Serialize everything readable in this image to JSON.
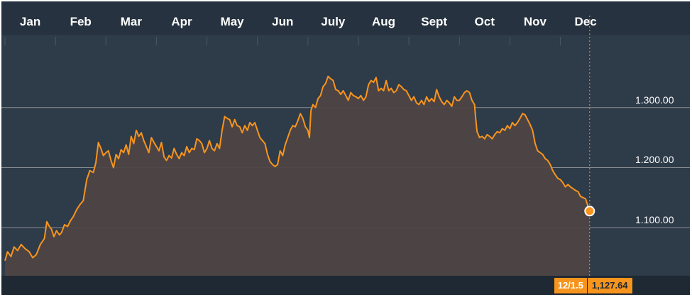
{
  "chart_data": {
    "type": "area",
    "x_months": [
      "Jan",
      "Feb",
      "Mar",
      "Apr",
      "May",
      "Jun",
      "July",
      "Aug",
      "Sept",
      "Oct",
      "Nov",
      "Dec"
    ],
    "y_ticks": [
      "1.100.00",
      "1.200.00",
      "1.300.00"
    ],
    "y_tick_values": [
      1100,
      1200,
      1300
    ],
    "ylim": [
      1020,
      1400
    ],
    "xlim": [
      0,
      12.3
    ],
    "grid": true,
    "colors": {
      "line": "#f7941d",
      "area": "#4e4445",
      "background": "#2e3b49",
      "grid": "#8a8f94"
    },
    "series": [
      {
        "values": [
          [
            0.0,
            1045
          ],
          [
            0.05,
            1060
          ],
          [
            0.12,
            1052
          ],
          [
            0.18,
            1068
          ],
          [
            0.25,
            1062
          ],
          [
            0.32,
            1072
          ],
          [
            0.4,
            1065
          ],
          [
            0.48,
            1060
          ],
          [
            0.55,
            1050
          ],
          [
            0.62,
            1055
          ],
          [
            0.7,
            1072
          ],
          [
            0.78,
            1082
          ],
          [
            0.83,
            1110
          ],
          [
            0.88,
            1102
          ],
          [
            0.92,
            1098
          ],
          [
            0.97,
            1085
          ],
          [
            1.02,
            1095
          ],
          [
            1.08,
            1088
          ],
          [
            1.12,
            1092
          ],
          [
            1.18,
            1105
          ],
          [
            1.24,
            1102
          ],
          [
            1.3,
            1112
          ],
          [
            1.35,
            1118
          ],
          [
            1.42,
            1130
          ],
          [
            1.48,
            1138
          ],
          [
            1.55,
            1145
          ],
          [
            1.62,
            1180
          ],
          [
            1.68,
            1195
          ],
          [
            1.75,
            1192
          ],
          [
            1.8,
            1208
          ],
          [
            1.85,
            1242
          ],
          [
            1.9,
            1232
          ],
          [
            1.95,
            1220
          ],
          [
            2.0,
            1225
          ],
          [
            2.05,
            1228
          ],
          [
            2.1,
            1212
          ],
          [
            2.15,
            1200
          ],
          [
            2.2,
            1222
          ],
          [
            2.25,
            1215
          ],
          [
            2.3,
            1230
          ],
          [
            2.35,
            1225
          ],
          [
            2.4,
            1238
          ],
          [
            2.45,
            1222
          ],
          [
            2.5,
            1252
          ],
          [
            2.55,
            1240
          ],
          [
            2.6,
            1262
          ],
          [
            2.65,
            1252
          ],
          [
            2.7,
            1258
          ],
          [
            2.75,
            1245
          ],
          [
            2.8,
            1235
          ],
          [
            2.85,
            1225
          ],
          [
            2.9,
            1250
          ],
          [
            2.95,
            1242
          ],
          [
            3.0,
            1235
          ],
          [
            3.05,
            1228
          ],
          [
            3.1,
            1242
          ],
          [
            3.15,
            1218
          ],
          [
            3.2,
            1212
          ],
          [
            3.25,
            1220
          ],
          [
            3.3,
            1216
          ],
          [
            3.35,
            1232
          ],
          [
            3.4,
            1222
          ],
          [
            3.45,
            1215
          ],
          [
            3.5,
            1225
          ],
          [
            3.55,
            1220
          ],
          [
            3.6,
            1235
          ],
          [
            3.65,
            1225
          ],
          [
            3.7,
            1232
          ],
          [
            3.75,
            1230
          ],
          [
            3.8,
            1248
          ],
          [
            3.85,
            1245
          ],
          [
            3.9,
            1240
          ],
          [
            3.95,
            1225
          ],
          [
            4.0,
            1232
          ],
          [
            4.05,
            1245
          ],
          [
            4.1,
            1232
          ],
          [
            4.15,
            1228
          ],
          [
            4.2,
            1240
          ],
          [
            4.25,
            1232
          ],
          [
            4.3,
            1262
          ],
          [
            4.35,
            1285
          ],
          [
            4.4,
            1282
          ],
          [
            4.45,
            1280
          ],
          [
            4.5,
            1268
          ],
          [
            4.55,
            1280
          ],
          [
            4.6,
            1270
          ],
          [
            4.65,
            1268
          ],
          [
            4.7,
            1258
          ],
          [
            4.75,
            1270
          ],
          [
            4.8,
            1262
          ],
          [
            4.85,
            1275
          ],
          [
            4.9,
            1270
          ],
          [
            4.95,
            1275
          ],
          [
            5.0,
            1262
          ],
          [
            5.05,
            1250
          ],
          [
            5.1,
            1245
          ],
          [
            5.15,
            1240
          ],
          [
            5.2,
            1222
          ],
          [
            5.25,
            1210
          ],
          [
            5.3,
            1205
          ],
          [
            5.35,
            1202
          ],
          [
            5.4,
            1205
          ],
          [
            5.45,
            1228
          ],
          [
            5.5,
            1220
          ],
          [
            5.55,
            1238
          ],
          [
            5.6,
            1250
          ],
          [
            5.65,
            1262
          ],
          [
            5.7,
            1270
          ],
          [
            5.75,
            1268
          ],
          [
            5.8,
            1278
          ],
          [
            5.85,
            1290
          ],
          [
            5.9,
            1282
          ],
          [
            5.95,
            1268
          ],
          [
            6.0,
            1262
          ],
          [
            6.03,
            1250
          ],
          [
            6.06,
            1295
          ],
          [
            6.1,
            1305
          ],
          [
            6.15,
            1300
          ],
          [
            6.2,
            1315
          ],
          [
            6.25,
            1320
          ],
          [
            6.3,
            1335
          ],
          [
            6.35,
            1340
          ],
          [
            6.4,
            1352
          ],
          [
            6.45,
            1348
          ],
          [
            6.5,
            1345
          ],
          [
            6.55,
            1330
          ],
          [
            6.6,
            1328
          ],
          [
            6.65,
            1322
          ],
          [
            6.7,
            1328
          ],
          [
            6.75,
            1320
          ],
          [
            6.8,
            1312
          ],
          [
            6.85,
            1325
          ],
          [
            6.9,
            1320
          ],
          [
            6.95,
            1318
          ],
          [
            7.0,
            1315
          ],
          [
            7.05,
            1320
          ],
          [
            7.1,
            1312
          ],
          [
            7.15,
            1318
          ],
          [
            7.2,
            1338
          ],
          [
            7.25,
            1345
          ],
          [
            7.3,
            1342
          ],
          [
            7.35,
            1350
          ],
          [
            7.4,
            1328
          ],
          [
            7.45,
            1332
          ],
          [
            7.5,
            1328
          ],
          [
            7.55,
            1345
          ],
          [
            7.6,
            1328
          ],
          [
            7.65,
            1332
          ],
          [
            7.7,
            1325
          ],
          [
            7.75,
            1328
          ],
          [
            7.8,
            1338
          ],
          [
            7.85,
            1335
          ],
          [
            7.9,
            1330
          ],
          [
            7.95,
            1328
          ],
          [
            8.0,
            1320
          ],
          [
            8.05,
            1312
          ],
          [
            8.1,
            1318
          ],
          [
            8.15,
            1308
          ],
          [
            8.2,
            1305
          ],
          [
            8.25,
            1312
          ],
          [
            8.3,
            1305
          ],
          [
            8.35,
            1318
          ],
          [
            8.4,
            1310
          ],
          [
            8.45,
            1315
          ],
          [
            8.5,
            1310
          ],
          [
            8.55,
            1330
          ],
          [
            8.6,
            1318
          ],
          [
            8.65,
            1310
          ],
          [
            8.7,
            1305
          ],
          [
            8.75,
            1312
          ],
          [
            8.8,
            1308
          ],
          [
            8.85,
            1302
          ],
          [
            8.9,
            1318
          ],
          [
            8.95,
            1312
          ],
          [
            9.0,
            1312
          ],
          [
            9.05,
            1318
          ],
          [
            9.1,
            1325
          ],
          [
            9.15,
            1328
          ],
          [
            9.2,
            1325
          ],
          [
            9.25,
            1312
          ],
          [
            9.3,
            1305
          ],
          [
            9.32,
            1285
          ],
          [
            9.35,
            1260
          ],
          [
            9.4,
            1250
          ],
          [
            9.45,
            1252
          ],
          [
            9.5,
            1248
          ],
          [
            9.55,
            1255
          ],
          [
            9.6,
            1252
          ],
          [
            9.65,
            1248
          ],
          [
            9.7,
            1255
          ],
          [
            9.75,
            1260
          ],
          [
            9.8,
            1258
          ],
          [
            9.85,
            1265
          ],
          [
            9.9,
            1262
          ],
          [
            9.95,
            1270
          ],
          [
            10.0,
            1265
          ],
          [
            10.05,
            1275
          ],
          [
            10.1,
            1270
          ],
          [
            10.15,
            1275
          ],
          [
            10.2,
            1282
          ],
          [
            10.25,
            1290
          ],
          [
            10.3,
            1288
          ],
          [
            10.35,
            1280
          ],
          [
            10.4,
            1272
          ],
          [
            10.45,
            1262
          ],
          [
            10.5,
            1240
          ],
          [
            10.55,
            1228
          ],
          [
            10.6,
            1225
          ],
          [
            10.65,
            1222
          ],
          [
            10.7,
            1215
          ],
          [
            10.75,
            1212
          ],
          [
            10.8,
            1205
          ],
          [
            10.85,
            1195
          ],
          [
            10.9,
            1188
          ],
          [
            10.95,
            1182
          ],
          [
            11.0,
            1180
          ],
          [
            11.05,
            1175
          ],
          [
            11.1,
            1168
          ],
          [
            11.15,
            1172
          ],
          [
            11.2,
            1168
          ],
          [
            11.25,
            1165
          ],
          [
            11.3,
            1162
          ],
          [
            11.35,
            1160
          ],
          [
            11.4,
            1152
          ],
          [
            11.45,
            1150
          ],
          [
            11.5,
            1148
          ],
          [
            11.55,
            1135
          ],
          [
            11.58,
            1128
          ]
        ]
      }
    ],
    "last_point": {
      "date": "12/1.5",
      "value": "1,127.64",
      "x": 11.58,
      "y": 1127.64
    }
  }
}
